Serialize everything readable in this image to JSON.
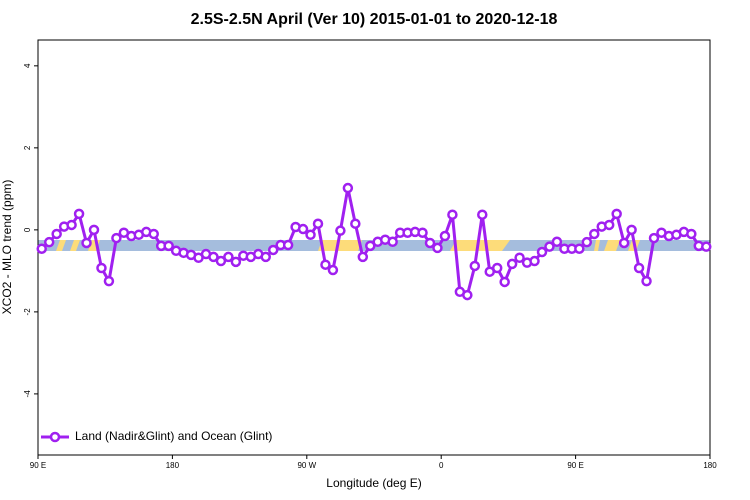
{
  "chart_data": {
    "type": "line",
    "title": "2.5S-2.5N April (Ver 10)   2015-01-01 to 2020-12-18",
    "x_label": "Longitude (deg E)",
    "y_label": "XCO2 - MLO trend (ppm)",
    "x": [
      92.5,
      97.5,
      102.5,
      107.5,
      112.5,
      117.5,
      122.5,
      127.5,
      132.5,
      137.5,
      142.5,
      147.5,
      152.5,
      157.5,
      162.5,
      167.5,
      172.5,
      177.5,
      182.5,
      187.5,
      192.5,
      197.5,
      202.5,
      207.5,
      212.5,
      217.5,
      222.5,
      227.5,
      232.5,
      237.5,
      242.5,
      247.5,
      252.5,
      257.5,
      262.5,
      267.5,
      272.5,
      277.5,
      282.5,
      287.5,
      292.5,
      297.5,
      302.5,
      307.5,
      312.5,
      317.5,
      322.5,
      327.5,
      332.5,
      337.5,
      342.5,
      347.5,
      352.5,
      357.5,
      362.5,
      367.5,
      372.5,
      377.5,
      382.5,
      387.5,
      392.5,
      397.5,
      402.5,
      407.5,
      412.5,
      417.5,
      422.5,
      427.5,
      432.5,
      437.5,
      442.5,
      447.5,
      452.5,
      457.5,
      462.5,
      467.5,
      472.5,
      477.5,
      482.5,
      487.5,
      492.5,
      497.5,
      502.5,
      507.5,
      512.5,
      517.5,
      522.5,
      527.5,
      532.5,
      537.5
    ],
    "series": [
      {
        "name": "Land (Nadir&Glint) and Ocean (Glint)",
        "color": "#a020f0",
        "values": [
          -0.46,
          -0.3,
          -0.1,
          0.08,
          0.12,
          0.39,
          -0.32,
          0.0,
          -0.93,
          -1.25,
          -0.2,
          -0.07,
          -0.15,
          -0.12,
          -0.05,
          -0.1,
          -0.39,
          -0.39,
          -0.51,
          -0.56,
          -0.61,
          -0.68,
          -0.59,
          -0.66,
          -0.76,
          -0.66,
          -0.78,
          -0.63,
          -0.66,
          -0.59,
          -0.66,
          -0.49,
          -0.37,
          -0.37,
          0.07,
          0.02,
          -0.12,
          0.15,
          -0.85,
          -0.98,
          -0.02,
          1.02,
          0.15,
          -0.66,
          -0.39,
          -0.29,
          -0.24,
          -0.29,
          -0.07,
          -0.07,
          -0.05,
          -0.07,
          -0.32,
          -0.44,
          -0.15,
          0.37,
          -1.51,
          -1.59,
          -0.88,
          0.37,
          -1.02,
          -0.93,
          -1.27,
          -0.83,
          -0.68,
          -0.8,
          -0.76,
          -0.54,
          -0.41,
          -0.29,
          -0.46,
          -0.46,
          -0.46,
          -0.3,
          -0.1,
          0.08,
          0.12,
          0.39,
          -0.32,
          0.0,
          -0.93,
          -1.25,
          -0.2,
          -0.07,
          -0.15,
          -0.12,
          -0.05,
          -0.1,
          -0.39,
          -0.41
        ]
      }
    ],
    "xlim": [
      90,
      540
    ],
    "xticks": [
      {
        "value": 90,
        "label": "90 E"
      },
      180,
      {
        "value": 270,
        "label": "90 W"
      },
      {
        "value": 360,
        "label": "0"
      },
      {
        "value": 450,
        "label": "90 E"
      },
      {
        "value": 540,
        "label": "180"
      }
    ],
    "ylim": [
      -5.49,
      4.63
    ],
    "yticks": [
      -4,
      -2,
      0,
      2,
      4
    ],
    "legend": "lower left"
  }
}
